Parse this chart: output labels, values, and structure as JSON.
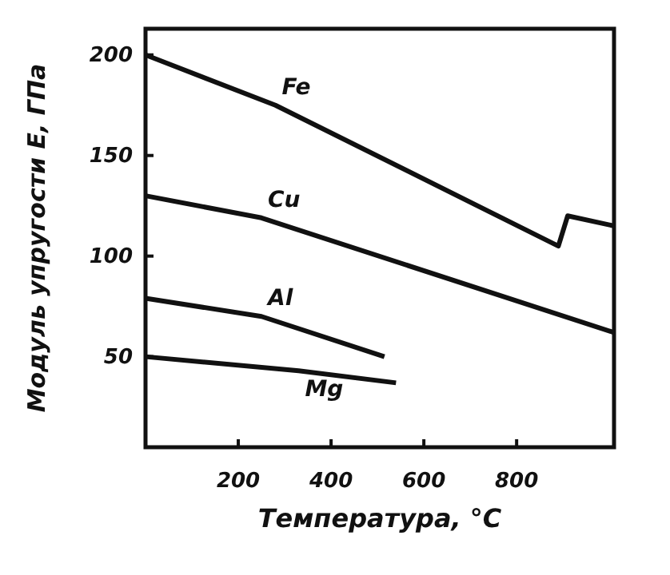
{
  "chart_data": {
    "type": "line",
    "xlabel": "Температура, °C",
    "ylabel": "Модуль упругости E, ГПа",
    "xlim": [
      0,
      1010
    ],
    "ylim": [
      5,
      213
    ],
    "xticks": [
      200,
      400,
      600,
      800
    ],
    "yticks": [
      50,
      100,
      150,
      200
    ],
    "grid": false,
    "legend": false,
    "marker": "none",
    "line_style": "solid",
    "series": [
      {
        "name": "Fe",
        "color": "#111111",
        "x": [
          0,
          280,
          890,
          910,
          1010
        ],
        "values": [
          200,
          175,
          105,
          120,
          115
        ]
      },
      {
        "name": "Cu",
        "color": "#111111",
        "x": [
          0,
          250,
          1010
        ],
        "values": [
          130,
          119,
          62
        ]
      },
      {
        "name": "Al",
        "color": "#111111",
        "x": [
          0,
          250,
          515
        ],
        "values": [
          79,
          70,
          50
        ]
      },
      {
        "name": "Mg",
        "color": "#111111",
        "x": [
          0,
          330,
          540
        ],
        "values": [
          50,
          43,
          37
        ]
      }
    ]
  }
}
